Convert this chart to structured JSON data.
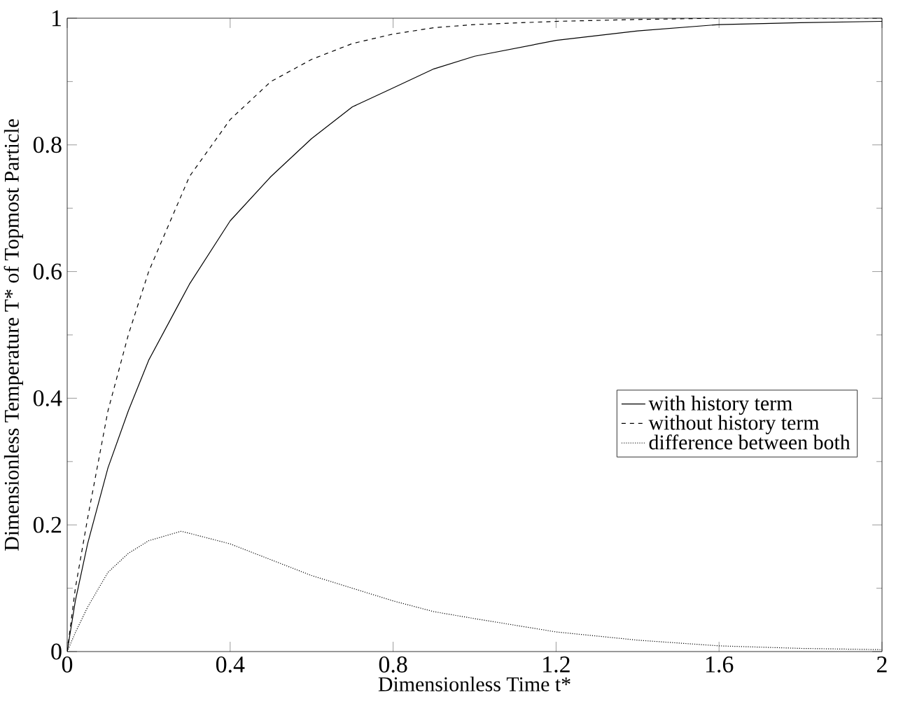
{
  "chart_data": {
    "type": "line",
    "xlabel": "Dimensionless Time t*",
    "ylabel": "Dimensionless Temperature T* of Topmost Particle",
    "xlim": [
      0,
      2
    ],
    "ylim": [
      0,
      1
    ],
    "xticks": [
      0,
      0.4,
      0.8,
      1.2,
      1.6,
      2
    ],
    "yticks": [
      0,
      0.2,
      0.4,
      0.6,
      0.8,
      1
    ],
    "legend": "right",
    "grid": false,
    "marker": "none",
    "series": [
      {
        "name": "with history term",
        "color": "#000000",
        "line_style": "solid",
        "x": [
          0,
          0.02,
          0.05,
          0.1,
          0.15,
          0.2,
          0.3,
          0.4,
          0.5,
          0.6,
          0.7,
          0.8,
          0.9,
          1.0,
          1.2,
          1.4,
          1.6,
          1.8,
          2.0
        ],
        "values": [
          0,
          0.08,
          0.17,
          0.29,
          0.38,
          0.46,
          0.58,
          0.68,
          0.75,
          0.81,
          0.86,
          0.89,
          0.92,
          0.94,
          0.965,
          0.98,
          0.99,
          0.993,
          0.995
        ]
      },
      {
        "name": "without history term",
        "color": "#000000",
        "line_style": "dashed",
        "x": [
          0,
          0.02,
          0.05,
          0.1,
          0.15,
          0.2,
          0.3,
          0.4,
          0.5,
          0.6,
          0.7,
          0.8,
          0.9,
          1.0,
          1.2,
          1.4,
          1.6,
          2.0
        ],
        "values": [
          0,
          0.1,
          0.21,
          0.38,
          0.5,
          0.6,
          0.75,
          0.84,
          0.9,
          0.935,
          0.96,
          0.975,
          0.985,
          0.99,
          0.995,
          0.998,
          1.0,
          1.0
        ]
      },
      {
        "name": "difference between both",
        "color": "#000000",
        "line_style": "dotted",
        "x": [
          0,
          0.02,
          0.05,
          0.1,
          0.15,
          0.2,
          0.28,
          0.4,
          0.5,
          0.6,
          0.7,
          0.8,
          0.9,
          1.0,
          1.2,
          1.4,
          1.6,
          1.8,
          2.0
        ],
        "values": [
          0,
          0.03,
          0.07,
          0.125,
          0.155,
          0.175,
          0.19,
          0.17,
          0.145,
          0.12,
          0.1,
          0.08,
          0.063,
          0.052,
          0.031,
          0.018,
          0.009,
          0.005,
          0.003
        ]
      }
    ]
  }
}
